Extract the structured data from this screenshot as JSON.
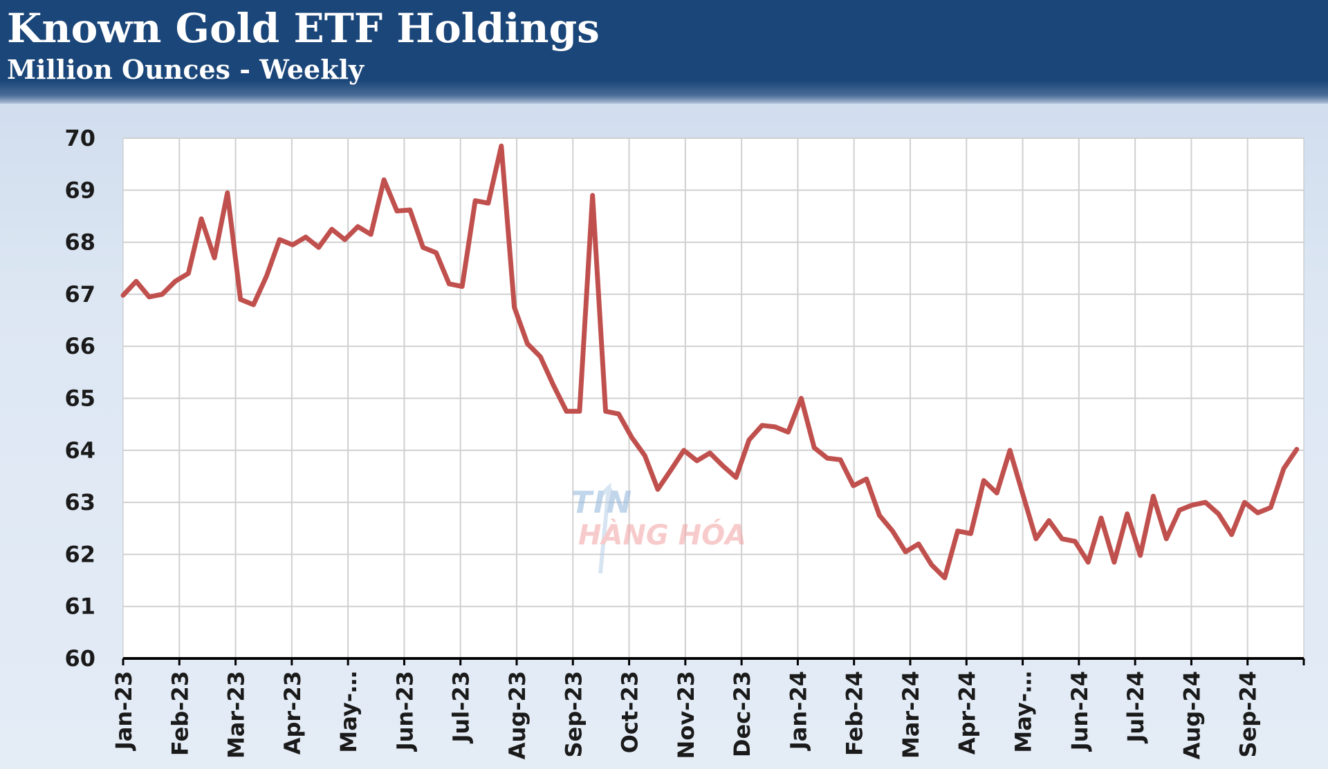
{
  "header": {
    "title": "Known Gold ETF Holdings",
    "subtitle": "Million Ounces - Weekly"
  },
  "watermark": {
    "line1": "TIN",
    "line2": "HÀNG HÓA"
  },
  "colors": {
    "header_bg": "#1b4679",
    "line": "#c0504d",
    "plot_bg": "#ffffff",
    "grid": "#d0d0d0"
  },
  "chart_data": {
    "type": "line",
    "title": "Known Gold ETF Holdings",
    "subtitle": "Million Ounces - Weekly",
    "xlabel": "",
    "ylabel": "",
    "ylim": [
      60,
      70
    ],
    "yticks": [
      60,
      61,
      62,
      63,
      64,
      65,
      66,
      67,
      68,
      69,
      70
    ],
    "grid": true,
    "legend": "none",
    "x_tick_labels": [
      "Jan-23",
      "Feb-23",
      "Mar-23",
      "Apr-23",
      "May-…",
      "Jun-23",
      "Jul-23",
      "Aug-23",
      "Sep-23",
      "Oct-23",
      "Nov-23",
      "Dec-23",
      "Jan-24",
      "Feb-24",
      "Mar-24",
      "Apr-24",
      "May-…",
      "Jun-24",
      "Jul-24",
      "Aug-24",
      "Sep-24"
    ],
    "series": [
      {
        "frequency": "weekly",
        "start": "2023-01",
        "values": [
          66.98,
          67.25,
          66.95,
          67.0,
          67.25,
          67.4,
          68.45,
          67.7,
          68.95,
          66.9,
          66.8,
          67.35,
          68.05,
          67.95,
          68.1,
          67.9,
          68.25,
          68.05,
          68.3,
          68.15,
          69.2,
          68.6,
          68.62,
          67.9,
          67.8,
          67.2,
          67.15,
          68.8,
          68.75,
          69.85,
          66.75,
          66.05,
          65.8,
          65.25,
          64.75,
          64.75,
          68.9,
          64.75,
          64.7,
          64.25,
          63.9,
          63.25,
          63.62,
          64.0,
          63.8,
          63.95,
          63.7,
          63.48,
          64.2,
          64.48,
          64.45,
          64.35,
          65.0,
          64.05,
          63.85,
          63.82,
          63.32,
          63.45,
          62.75,
          62.45,
          62.05,
          62.2,
          61.8,
          61.55,
          62.45,
          62.4,
          63.42,
          63.18,
          64.0,
          63.15,
          62.3,
          62.65,
          62.3,
          62.25,
          61.85,
          62.7,
          61.85,
          62.78,
          61.98,
          63.12,
          62.3,
          62.85,
          62.95,
          63.0,
          62.78,
          62.38,
          63.0,
          62.8,
          62.9,
          63.65,
          64.02
        ]
      }
    ]
  }
}
